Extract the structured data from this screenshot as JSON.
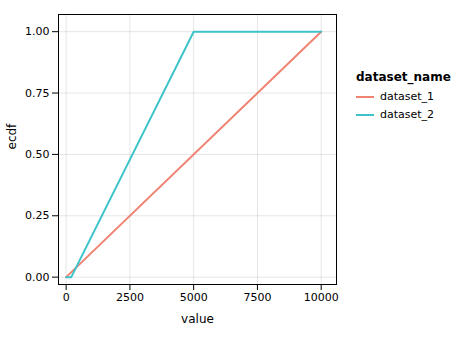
{
  "chart_data": {
    "type": "line",
    "xlabel": "value",
    "ylabel": "ecdf",
    "legend_title": "dataset_name",
    "series": [
      {
        "name": "dataset_1",
        "color": "#F08272",
        "x": [
          0,
          10000
        ],
        "values": [
          0.0,
          1.0
        ]
      },
      {
        "name": "dataset_2",
        "color": "#3DC4CB",
        "x": [
          0,
          200,
          5000,
          10000
        ],
        "values": [
          0.0,
          0.0,
          1.0,
          1.0
        ]
      }
    ],
    "xlim": [
      -300,
      10600
    ],
    "ylim": [
      -0.03,
      1.07
    ],
    "xticks": [
      0,
      2500,
      5000,
      7500,
      10000
    ],
    "yticks": [
      {
        "value": 0,
        "label": "0.00"
      },
      {
        "value": 0.25,
        "label": "0.25"
      },
      {
        "value": 0.5,
        "label": "0.50"
      },
      {
        "value": 0.75,
        "label": "0.75"
      },
      {
        "value": 1,
        "label": "1.00"
      }
    ],
    "grid": true,
    "legend": "right"
  }
}
